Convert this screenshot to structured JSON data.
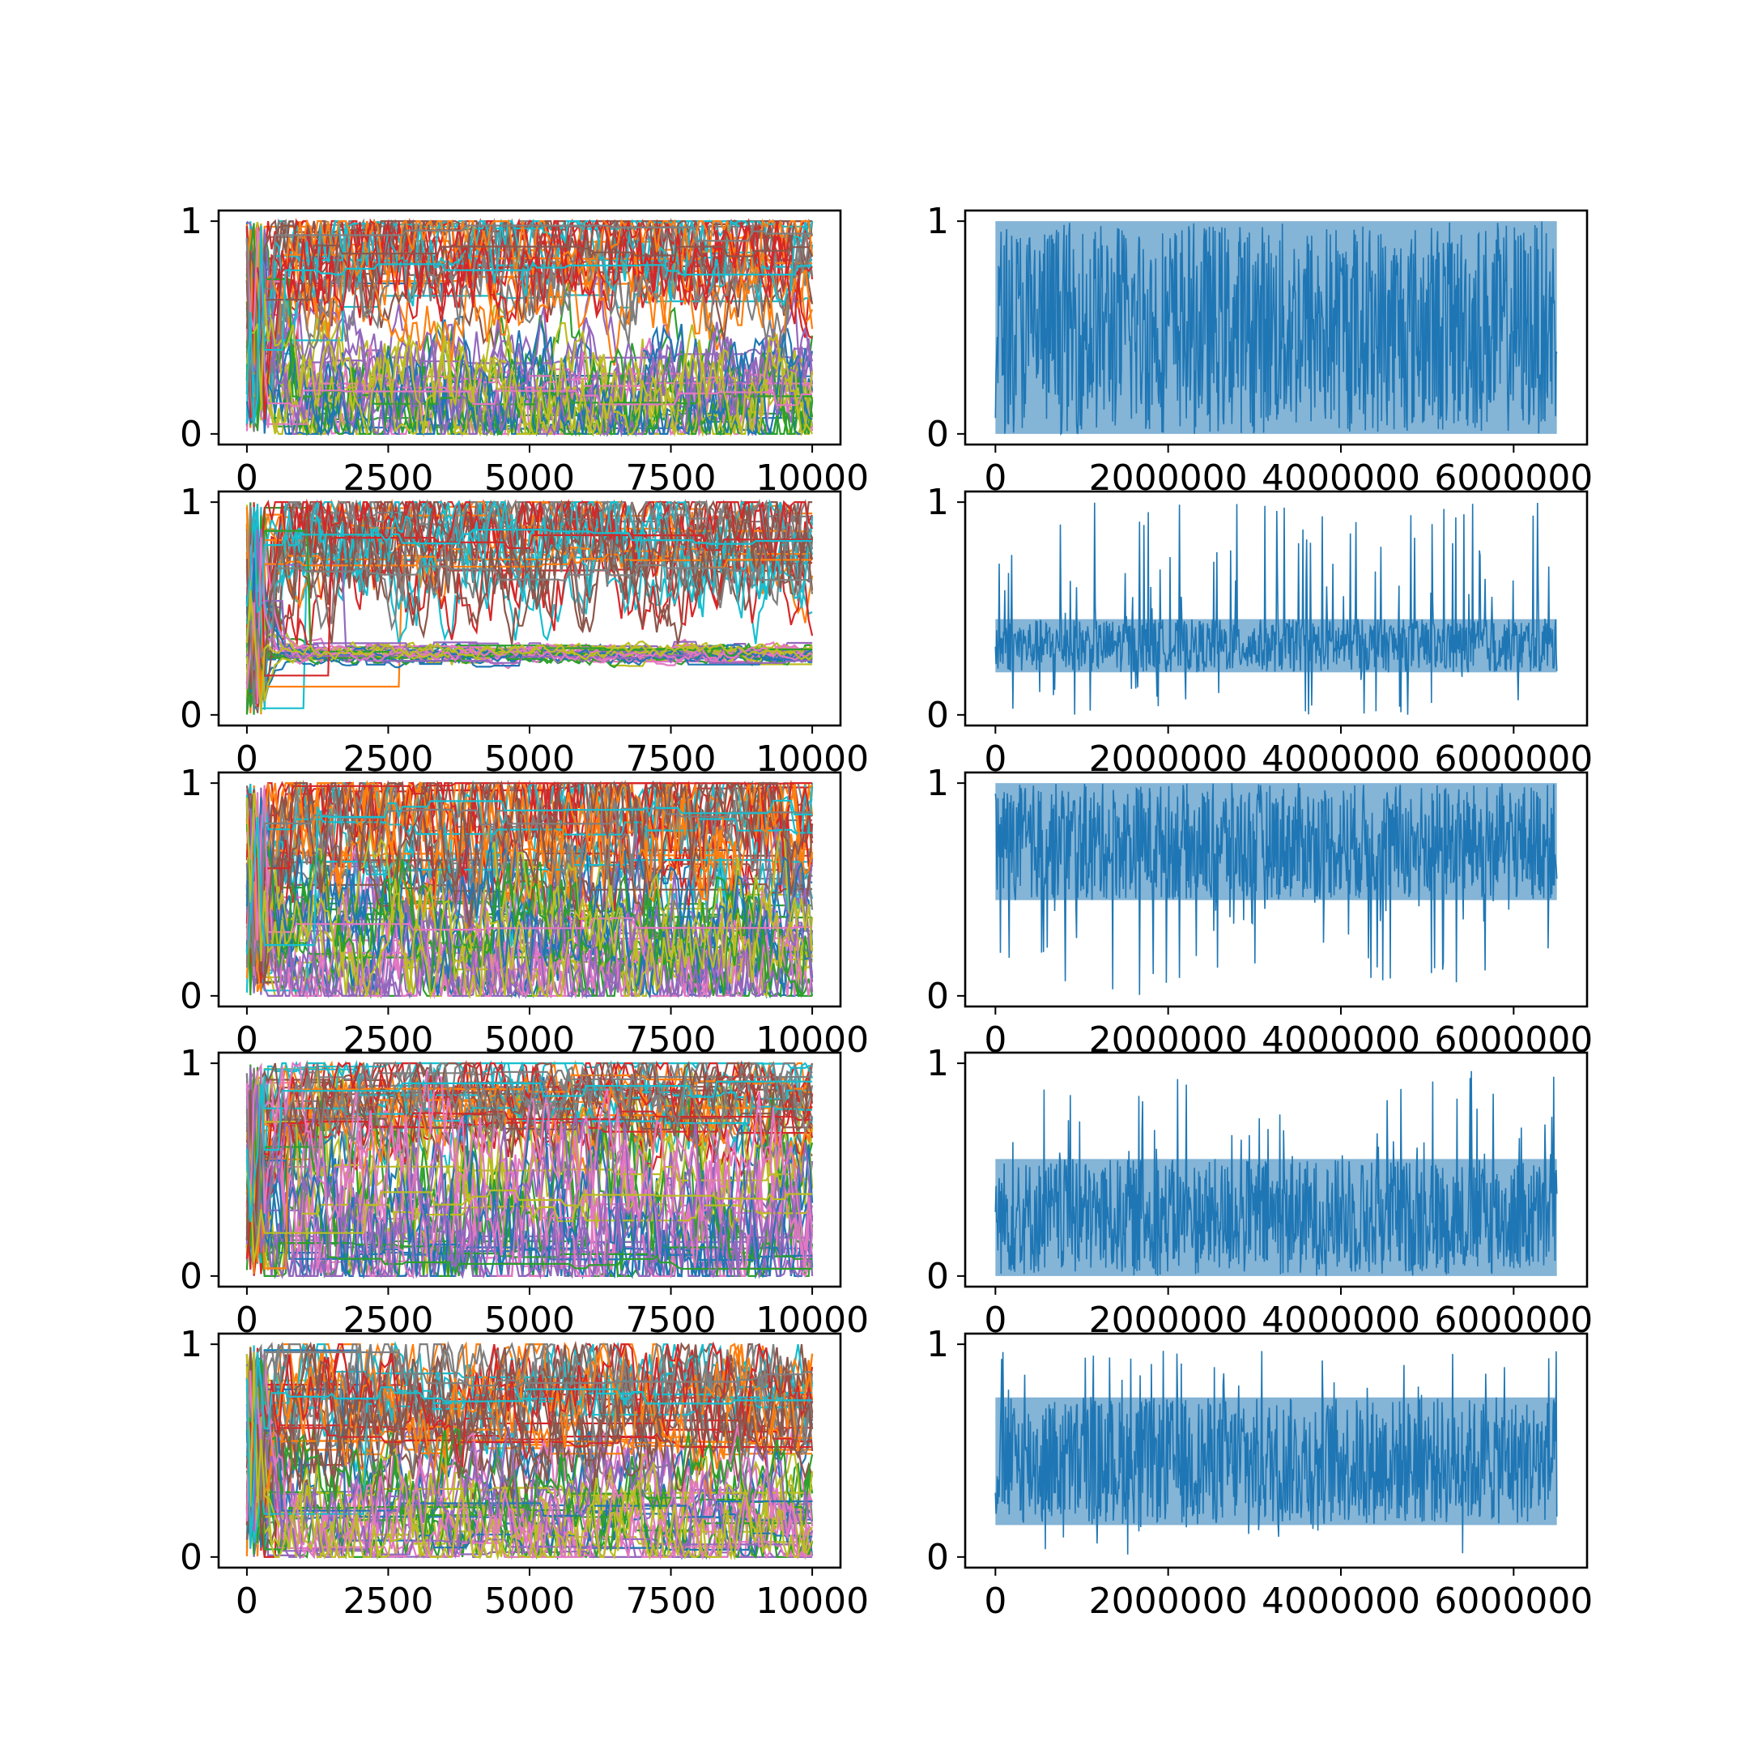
{
  "figure": {
    "rows": 5,
    "cols": 2,
    "palette": [
      "#1f77b4",
      "#ff7f0e",
      "#2ca02c",
      "#d62728",
      "#9467bd",
      "#8c564b",
      "#e377c2",
      "#7f7f7f",
      "#bcbd22",
      "#17becf"
    ],
    "right_panel_color": "#1f77b4"
  },
  "chart_data": [
    {
      "type": "line",
      "panel": "r1-left",
      "title": "",
      "xlabel": "",
      "ylabel": "",
      "xlim": [
        -500,
        10500
      ],
      "ylim": [
        -0.05,
        1.05
      ],
      "xticks": [
        0,
        2500,
        5000,
        7500,
        10000
      ],
      "xtick_labels": [
        "0",
        "2500",
        "5000",
        "7500",
        "10000"
      ],
      "yticks": [
        0,
        1
      ],
      "ytick_labels": [
        "0",
        "1"
      ],
      "n_series": "many",
      "clusters": [
        [
          0.0,
          0.4
        ],
        [
          0.6,
          1.0
        ]
      ],
      "x_max": 10000
    },
    {
      "type": "line",
      "panel": "r1-right",
      "title": "",
      "xlabel": "",
      "ylabel": "",
      "xlim": [
        -350000,
        6850000
      ],
      "ylim": [
        -0.05,
        1.05
      ],
      "xticks": [
        0,
        2000000,
        4000000,
        6000000
      ],
      "xtick_labels": [
        "0",
        "2000000",
        "4000000",
        "6000000"
      ],
      "yticks": [
        0,
        1
      ],
      "ytick_labels": [
        "0",
        "1"
      ],
      "x_max": 6500000,
      "band": [
        0.0,
        1.0
      ]
    },
    {
      "type": "line",
      "panel": "r2-left",
      "title": "",
      "xlabel": "",
      "ylabel": "",
      "xlim": [
        -500,
        10500
      ],
      "ylim": [
        -0.05,
        1.05
      ],
      "xticks": [
        0,
        2500,
        5000,
        7500,
        10000
      ],
      "xtick_labels": [
        "0",
        "2500",
        "5000",
        "7500",
        "10000"
      ],
      "yticks": [
        0,
        1
      ],
      "ytick_labels": [
        "0",
        "1"
      ],
      "n_series": "many",
      "clusters": [
        [
          0.26,
          0.31
        ],
        [
          0.6,
          1.0
        ]
      ],
      "x_max": 10000
    },
    {
      "type": "line",
      "panel": "r2-right",
      "title": "",
      "xlabel": "",
      "ylabel": "",
      "xlim": [
        -350000,
        6850000
      ],
      "ylim": [
        -0.05,
        1.05
      ],
      "xticks": [
        0,
        2000000,
        4000000,
        6000000
      ],
      "xtick_labels": [
        "0",
        "2000000",
        "4000000",
        "6000000"
      ],
      "yticks": [
        0,
        1
      ],
      "ytick_labels": [
        "0",
        "1"
      ],
      "x_max": 6500000,
      "band": [
        0.2,
        0.45
      ]
    },
    {
      "type": "line",
      "panel": "r3-left",
      "title": "",
      "xlabel": "",
      "ylabel": "",
      "xlim": [
        -500,
        10500
      ],
      "ylim": [
        -0.05,
        1.05
      ],
      "xticks": [
        0,
        2500,
        5000,
        7500,
        10000
      ],
      "xtick_labels": [
        "0",
        "2500",
        "5000",
        "7500",
        "10000"
      ],
      "yticks": [
        0,
        1
      ],
      "ytick_labels": [
        "0",
        "1"
      ],
      "n_series": "many",
      "clusters": [
        [
          0.0,
          0.45
        ],
        [
          0.5,
          1.0
        ]
      ],
      "x_max": 10000
    },
    {
      "type": "line",
      "panel": "r3-right",
      "title": "",
      "xlabel": "",
      "ylabel": "",
      "xlim": [
        -350000,
        6850000
      ],
      "ylim": [
        -0.05,
        1.05
      ],
      "xticks": [
        0,
        2000000,
        4000000,
        6000000
      ],
      "xtick_labels": [
        "0",
        "2000000",
        "4000000",
        "6000000"
      ],
      "yticks": [
        0,
        1
      ],
      "ytick_labels": [
        "0",
        "1"
      ],
      "x_max": 6500000,
      "band": [
        0.45,
        1.0
      ]
    },
    {
      "type": "line",
      "panel": "r4-left",
      "title": "",
      "xlabel": "",
      "ylabel": "",
      "xlim": [
        -500,
        10500
      ],
      "ylim": [
        -0.05,
        1.05
      ],
      "xticks": [
        0,
        2500,
        5000,
        7500,
        10000
      ],
      "xtick_labels": [
        "0",
        "2500",
        "5000",
        "7500",
        "10000"
      ],
      "yticks": [
        0,
        1
      ],
      "ytick_labels": [
        "0",
        "1"
      ],
      "n_series": "many",
      "clusters": [
        [
          0.0,
          0.58
        ],
        [
          0.7,
          1.0
        ]
      ],
      "x_max": 10000
    },
    {
      "type": "line",
      "panel": "r4-right",
      "title": "",
      "xlabel": "",
      "ylabel": "",
      "xlim": [
        -350000,
        6850000
      ],
      "ylim": [
        -0.05,
        1.05
      ],
      "xticks": [
        0,
        2000000,
        4000000,
        6000000
      ],
      "xtick_labels": [
        "0",
        "2000000",
        "4000000",
        "6000000"
      ],
      "yticks": [
        0,
        1
      ],
      "ytick_labels": [
        "0",
        "1"
      ],
      "x_max": 6500000,
      "band": [
        0.0,
        0.55
      ]
    },
    {
      "type": "line",
      "panel": "r5-left",
      "title": "",
      "xlabel": "",
      "ylabel": "",
      "xlim": [
        -500,
        10500
      ],
      "ylim": [
        -0.05,
        1.05
      ],
      "xticks": [
        0,
        2500,
        5000,
        7500,
        10000
      ],
      "xtick_labels": [
        "0",
        "2500",
        "5000",
        "7500",
        "10000"
      ],
      "yticks": [
        0,
        1
      ],
      "ytick_labels": [
        "0",
        "1"
      ],
      "n_series": "many",
      "clusters": [
        [
          0.0,
          0.38
        ],
        [
          0.5,
          0.9
        ]
      ],
      "x_max": 10000
    },
    {
      "type": "line",
      "panel": "r5-right",
      "title": "",
      "xlabel": "",
      "ylabel": "",
      "xlim": [
        -350000,
        6850000
      ],
      "ylim": [
        -0.05,
        1.05
      ],
      "xticks": [
        0,
        2000000,
        4000000,
        6000000
      ],
      "xtick_labels": [
        "0",
        "2000000",
        "4000000",
        "6000000"
      ],
      "yticks": [
        0,
        1
      ],
      "ytick_labels": [
        "0",
        "1"
      ],
      "x_max": 6500000,
      "band": [
        0.15,
        0.75
      ]
    }
  ]
}
